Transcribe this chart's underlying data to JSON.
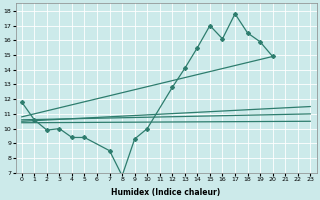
{
  "xlabel": "Humidex (Indice chaleur)",
  "bg_color": "#cceaea",
  "line_color": "#2e7d6e",
  "xlim": [
    -0.5,
    23.5
  ],
  "ylim": [
    7,
    18.5
  ],
  "xticks": [
    0,
    1,
    2,
    3,
    4,
    5,
    6,
    7,
    8,
    9,
    10,
    11,
    12,
    13,
    14,
    15,
    16,
    17,
    18,
    19,
    20,
    21,
    22,
    23
  ],
  "yticks": [
    7,
    8,
    9,
    10,
    11,
    12,
    13,
    14,
    15,
    16,
    17,
    18
  ],
  "zigzag_x": [
    0,
    1,
    2,
    3,
    4,
    5,
    7,
    8,
    9,
    10,
    12,
    13,
    14,
    15,
    16,
    17,
    18,
    19,
    20
  ],
  "zigzag_y": [
    11.8,
    10.6,
    9.9,
    10.0,
    9.4,
    9.4,
    8.5,
    6.8,
    9.3,
    10.0,
    12.8,
    14.1,
    15.5,
    17.0,
    16.1,
    17.8,
    16.5,
    15.9,
    14.9
  ],
  "trend1_x": [
    0,
    23
  ],
  "trend1_y": [
    10.4,
    10.5
  ],
  "trend2_x": [
    0,
    23
  ],
  "trend2_y": [
    10.6,
    11.0
  ],
  "trend3_x": [
    0,
    20
  ],
  "trend3_y": [
    10.8,
    14.9
  ],
  "trend4_x": [
    0,
    23
  ],
  "trend4_y": [
    10.5,
    11.5
  ]
}
